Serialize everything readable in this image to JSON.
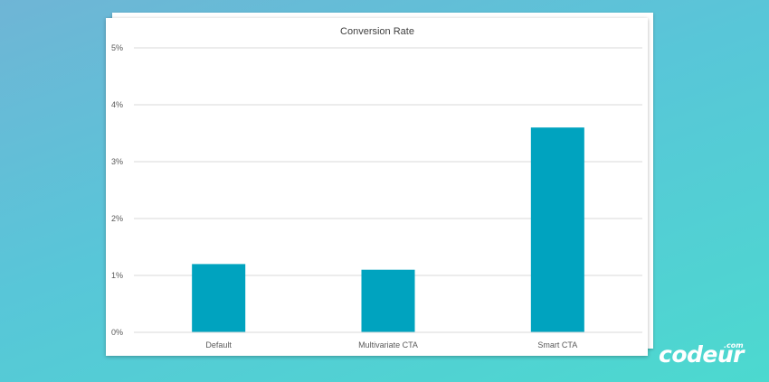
{
  "brand": {
    "logo_text": "codeur",
    "logo_suffix": ".com"
  },
  "colors": {
    "background_top": "#6fb5d6",
    "background_bottom": "#4cd9cf",
    "bar": "#00a3bf",
    "gridline": "#d9d9d9",
    "text": "#404040"
  },
  "chart_data": {
    "type": "bar",
    "title": "Conversion Rate",
    "categories": [
      "Default",
      "Multivariate CTA",
      "Smart CTA"
    ],
    "values": [
      1.2,
      1.1,
      3.6
    ],
    "value_unit": "%",
    "ylim": [
      0,
      5
    ],
    "yticks": [
      0,
      1,
      2,
      3,
      4,
      5
    ],
    "ytick_labels": [
      "0%",
      "1%",
      "2%",
      "3%",
      "4%",
      "5%"
    ],
    "xlabel": "",
    "ylabel": "",
    "grid": true,
    "legend": "none"
  }
}
